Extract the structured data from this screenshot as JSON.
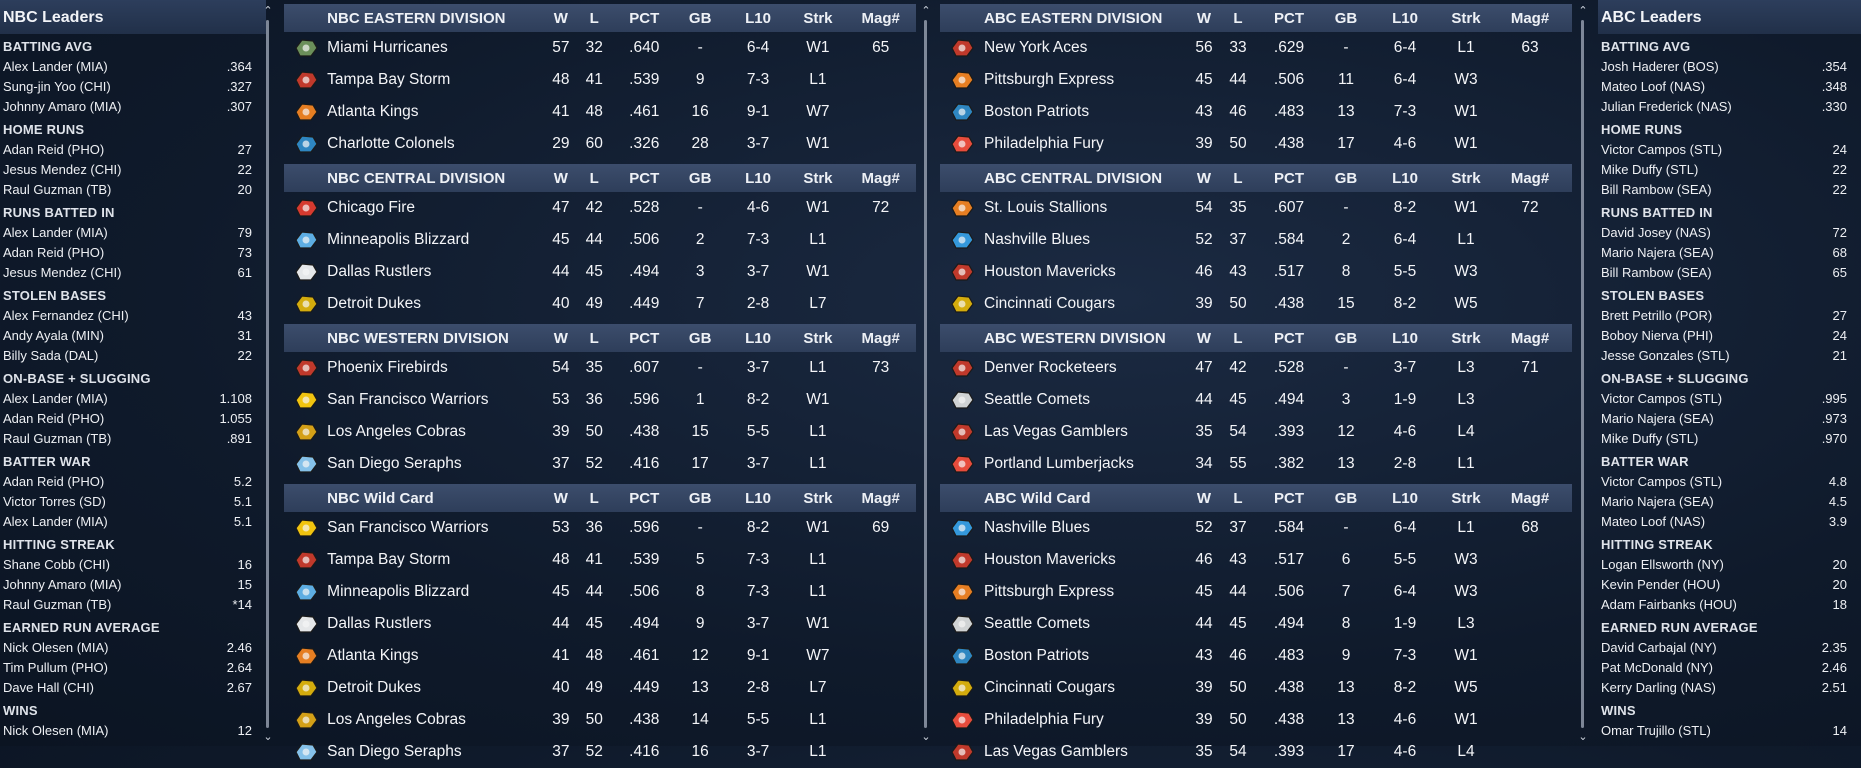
{
  "nbc_leaders": {
    "title": "NBC Leaders",
    "categories": [
      {
        "name": "BATTING AVG",
        "rows": [
          [
            "Alex Lander (MIA)",
            ".364"
          ],
          [
            "Sung-jin Yoo (CHI)",
            ".327"
          ],
          [
            "Johnny Amaro (MIA)",
            ".307"
          ]
        ]
      },
      {
        "name": "HOME RUNS",
        "rows": [
          [
            "Adan Reid (PHO)",
            "27"
          ],
          [
            "Jesus Mendez (CHI)",
            "22"
          ],
          [
            "Raul Guzman (TB)",
            "20"
          ]
        ]
      },
      {
        "name": "RUNS BATTED IN",
        "rows": [
          [
            "Alex Lander (MIA)",
            "79"
          ],
          [
            "Adan Reid (PHO)",
            "73"
          ],
          [
            "Jesus Mendez (CHI)",
            "61"
          ]
        ]
      },
      {
        "name": "STOLEN BASES",
        "rows": [
          [
            "Alex Fernandez (CHI)",
            "43"
          ],
          [
            "Andy Ayala (MIN)",
            "31"
          ],
          [
            "Billy Sada (DAL)",
            "22"
          ]
        ]
      },
      {
        "name": "ON-BASE + SLUGGING",
        "rows": [
          [
            "Alex Lander (MIA)",
            "1.108"
          ],
          [
            "Adan Reid (PHO)",
            "1.055"
          ],
          [
            "Raul Guzman (TB)",
            ".891"
          ]
        ]
      },
      {
        "name": "BATTER WAR",
        "rows": [
          [
            "Adan Reid (PHO)",
            "5.2"
          ],
          [
            "Victor Torres (SD)",
            "5.1"
          ],
          [
            "Alex Lander (MIA)",
            "5.1"
          ]
        ]
      },
      {
        "name": "HITTING STREAK",
        "rows": [
          [
            "Shane Cobb (CHI)",
            "16"
          ],
          [
            "Johnny Amaro (MIA)",
            "15"
          ],
          [
            "Raul Guzman (TB)",
            "*14"
          ]
        ]
      },
      {
        "name": "EARNED RUN AVERAGE",
        "rows": [
          [
            "Nick Olesen (MIA)",
            "2.46"
          ],
          [
            "Tim Pullum (PHO)",
            "2.64"
          ],
          [
            "Dave Hall (CHI)",
            "2.67"
          ]
        ]
      },
      {
        "name": "WINS",
        "rows": [
          [
            "Nick Olesen (MIA)",
            "12"
          ]
        ]
      }
    ]
  },
  "abc_leaders": {
    "title": "ABC Leaders",
    "categories": [
      {
        "name": "BATTING AVG",
        "rows": [
          [
            "Josh Haderer (BOS)",
            ".354"
          ],
          [
            "Mateo Loof (NAS)",
            ".348"
          ],
          [
            "Julian Frederick (NAS)",
            ".330"
          ]
        ]
      },
      {
        "name": "HOME RUNS",
        "rows": [
          [
            "Victor Campos (STL)",
            "24"
          ],
          [
            "Mike Duffy (STL)",
            "22"
          ],
          [
            "Bill Rambow (SEA)",
            "22"
          ]
        ]
      },
      {
        "name": "RUNS BATTED IN",
        "rows": [
          [
            "David Josey (NAS)",
            "72"
          ],
          [
            "Mario Najera (SEA)",
            "68"
          ],
          [
            "Bill Rambow (SEA)",
            "65"
          ]
        ]
      },
      {
        "name": "STOLEN BASES",
        "rows": [
          [
            "Brett Petrillo (POR)",
            "27"
          ],
          [
            "Boboy Nierva (PHI)",
            "24"
          ],
          [
            "Jesse Gonzales (STL)",
            "21"
          ]
        ]
      },
      {
        "name": "ON-BASE + SLUGGING",
        "rows": [
          [
            "Victor Campos (STL)",
            ".995"
          ],
          [
            "Mario Najera (SEA)",
            ".973"
          ],
          [
            "Mike Duffy (STL)",
            ".970"
          ]
        ]
      },
      {
        "name": "BATTER WAR",
        "rows": [
          [
            "Victor Campos (STL)",
            "4.8"
          ],
          [
            "Mario Najera (SEA)",
            "4.5"
          ],
          [
            "Mateo Loof (NAS)",
            "3.9"
          ]
        ]
      },
      {
        "name": "HITTING STREAK",
        "rows": [
          [
            "Logan Ellsworth (NY)",
            "20"
          ],
          [
            "Kevin Pender (HOU)",
            "20"
          ],
          [
            "Adam Fairbanks (HOU)",
            "18"
          ]
        ]
      },
      {
        "name": "EARNED RUN AVERAGE",
        "rows": [
          [
            "David Carbajal (NY)",
            "2.35"
          ],
          [
            "Pat McDonald (NY)",
            "2.46"
          ],
          [
            "Kerry Darling (NAS)",
            "2.51"
          ]
        ]
      },
      {
        "name": "WINS",
        "rows": [
          [
            "Omar Trujillo (STL)",
            "14"
          ]
        ]
      }
    ]
  },
  "columns": [
    "W",
    "L",
    "PCT",
    "GB",
    "L10",
    "Strk",
    "Mag#"
  ],
  "nbc_standings": [
    {
      "title": "NBC EASTERN DIVISION",
      "teams": [
        {
          "name": "Miami Hurricanes",
          "w": "57",
          "l": "32",
          "pct": ".640",
          "gb": "-",
          "l10": "6-4",
          "strk": "W1",
          "mag": "65",
          "logo": "hurricane-logo-icon",
          "color": "#6b8f5a"
        },
        {
          "name": "Tampa Bay Storm",
          "w": "48",
          "l": "41",
          "pct": ".539",
          "gb": "9",
          "l10": "7-3",
          "strk": "L1",
          "mag": "",
          "logo": "storm-logo-icon",
          "color": "#c0392b"
        },
        {
          "name": "Atlanta Kings",
          "w": "41",
          "l": "48",
          "pct": ".461",
          "gb": "16",
          "l10": "9-1",
          "strk": "W7",
          "mag": "",
          "logo": "kings-logo-icon",
          "color": "#e67e22"
        },
        {
          "name": "Charlotte Colonels",
          "w": "29",
          "l": "60",
          "pct": ".326",
          "gb": "28",
          "l10": "3-7",
          "strk": "W1",
          "mag": "",
          "logo": "colonels-logo-icon",
          "color": "#2e86c1"
        }
      ]
    },
    {
      "title": "NBC CENTRAL DIVISION",
      "teams": [
        {
          "name": "Chicago Fire",
          "w": "47",
          "l": "42",
          "pct": ".528",
          "gb": "-",
          "l10": "4-6",
          "strk": "W1",
          "mag": "72",
          "logo": "fire-logo-icon",
          "color": "#d63a2f"
        },
        {
          "name": "Minneapolis Blizzard",
          "w": "45",
          "l": "44",
          "pct": ".506",
          "gb": "2",
          "l10": "7-3",
          "strk": "L1",
          "mag": "",
          "logo": "blizzard-logo-icon",
          "color": "#5dade2"
        },
        {
          "name": "Dallas Rustlers",
          "w": "44",
          "l": "45",
          "pct": ".494",
          "gb": "3",
          "l10": "3-7",
          "strk": "W1",
          "mag": "",
          "logo": "rustlers-logo-icon",
          "color": "#e5e7e9"
        },
        {
          "name": "Detroit Dukes",
          "w": "40",
          "l": "49",
          "pct": ".449",
          "gb": "7",
          "l10": "2-8",
          "strk": "L7",
          "mag": "",
          "logo": "dukes-logo-icon",
          "color": "#d4ac0d"
        }
      ]
    },
    {
      "title": "NBC WESTERN DIVISION",
      "teams": [
        {
          "name": "Phoenix Firebirds",
          "w": "54",
          "l": "35",
          "pct": ".607",
          "gb": "-",
          "l10": "3-7",
          "strk": "L1",
          "mag": "73",
          "logo": "firebirds-logo-icon",
          "color": "#c0392b"
        },
        {
          "name": "San Francisco Warriors",
          "w": "53",
          "l": "36",
          "pct": ".596",
          "gb": "1",
          "l10": "8-2",
          "strk": "W1",
          "mag": "",
          "logo": "warriors-logo-icon",
          "color": "#f1c40f"
        },
        {
          "name": "Los Angeles Cobras",
          "w": "39",
          "l": "50",
          "pct": ".438",
          "gb": "15",
          "l10": "5-5",
          "strk": "L1",
          "mag": "",
          "logo": "cobras-logo-icon",
          "color": "#d4a017"
        },
        {
          "name": "San Diego Seraphs",
          "w": "37",
          "l": "52",
          "pct": ".416",
          "gb": "17",
          "l10": "3-7",
          "strk": "L1",
          "mag": "",
          "logo": "seraphs-logo-icon",
          "color": "#85c1e9"
        }
      ]
    },
    {
      "title": "NBC  Wild Card",
      "teams": [
        {
          "name": "San Francisco Warriors",
          "w": "53",
          "l": "36",
          "pct": ".596",
          "gb": "-",
          "l10": "8-2",
          "strk": "W1",
          "mag": "69",
          "logo": "warriors-logo-icon",
          "color": "#f1c40f"
        },
        {
          "name": "Tampa Bay Storm",
          "w": "48",
          "l": "41",
          "pct": ".539",
          "gb": "5",
          "l10": "7-3",
          "strk": "L1",
          "mag": "",
          "logo": "storm-logo-icon",
          "color": "#c0392b"
        },
        {
          "name": "Minneapolis Blizzard",
          "w": "45",
          "l": "44",
          "pct": ".506",
          "gb": "8",
          "l10": "7-3",
          "strk": "L1",
          "mag": "",
          "logo": "blizzard-logo-icon",
          "color": "#5dade2"
        },
        {
          "name": "Dallas Rustlers",
          "w": "44",
          "l": "45",
          "pct": ".494",
          "gb": "9",
          "l10": "3-7",
          "strk": "W1",
          "mag": "",
          "logo": "rustlers-logo-icon",
          "color": "#e5e7e9"
        },
        {
          "name": "Atlanta Kings",
          "w": "41",
          "l": "48",
          "pct": ".461",
          "gb": "12",
          "l10": "9-1",
          "strk": "W7",
          "mag": "",
          "logo": "kings-logo-icon",
          "color": "#e67e22"
        },
        {
          "name": "Detroit Dukes",
          "w": "40",
          "l": "49",
          "pct": ".449",
          "gb": "13",
          "l10": "2-8",
          "strk": "L7",
          "mag": "",
          "logo": "dukes-logo-icon",
          "color": "#d4ac0d"
        },
        {
          "name": "Los Angeles Cobras",
          "w": "39",
          "l": "50",
          "pct": ".438",
          "gb": "14",
          "l10": "5-5",
          "strk": "L1",
          "mag": "",
          "logo": "cobras-logo-icon",
          "color": "#d4a017"
        },
        {
          "name": "San Diego Seraphs",
          "w": "37",
          "l": "52",
          "pct": ".416",
          "gb": "16",
          "l10": "3-7",
          "strk": "L1",
          "mag": "",
          "logo": "seraphs-logo-icon",
          "color": "#85c1e9"
        }
      ]
    }
  ],
  "abc_standings": [
    {
      "title": "ABC EASTERN DIVISION",
      "teams": [
        {
          "name": "New York Aces",
          "w": "56",
          "l": "33",
          "pct": ".629",
          "gb": "-",
          "l10": "6-4",
          "strk": "L1",
          "mag": "63",
          "logo": "aces-logo-icon",
          "color": "#c0392b"
        },
        {
          "name": "Pittsburgh Express",
          "w": "45",
          "l": "44",
          "pct": ".506",
          "gb": "11",
          "l10": "6-4",
          "strk": "W3",
          "mag": "",
          "logo": "express-logo-icon",
          "color": "#e67e22"
        },
        {
          "name": "Boston Patriots",
          "w": "43",
          "l": "46",
          "pct": ".483",
          "gb": "13",
          "l10": "7-3",
          "strk": "W1",
          "mag": "",
          "logo": "patriots-logo-icon",
          "color": "#2e86c1"
        },
        {
          "name": "Philadelphia Fury",
          "w": "39",
          "l": "50",
          "pct": ".438",
          "gb": "17",
          "l10": "4-6",
          "strk": "W1",
          "mag": "",
          "logo": "fury-logo-icon",
          "color": "#e74c3c"
        }
      ]
    },
    {
      "title": "ABC CENTRAL DIVISION",
      "teams": [
        {
          "name": "St. Louis Stallions",
          "w": "54",
          "l": "35",
          "pct": ".607",
          "gb": "-",
          "l10": "8-2",
          "strk": "W1",
          "mag": "72",
          "logo": "stallions-logo-icon",
          "color": "#e67e22"
        },
        {
          "name": "Nashville Blues",
          "w": "52",
          "l": "37",
          "pct": ".584",
          "gb": "2",
          "l10": "6-4",
          "strk": "L1",
          "mag": "",
          "logo": "blues-logo-icon",
          "color": "#3498db"
        },
        {
          "name": "Houston Mavericks",
          "w": "46",
          "l": "43",
          "pct": ".517",
          "gb": "8",
          "l10": "5-5",
          "strk": "W3",
          "mag": "",
          "logo": "mavericks-logo-icon",
          "color": "#c0392b"
        },
        {
          "name": "Cincinnati Cougars",
          "w": "39",
          "l": "50",
          "pct": ".438",
          "gb": "15",
          "l10": "8-2",
          "strk": "W5",
          "mag": "",
          "logo": "cougars-logo-icon",
          "color": "#d4ac0d"
        }
      ]
    },
    {
      "title": "ABC WESTERN DIVISION",
      "teams": [
        {
          "name": "Denver Rocketeers",
          "w": "47",
          "l": "42",
          "pct": ".528",
          "gb": "-",
          "l10": "3-7",
          "strk": "L3",
          "mag": "71",
          "logo": "rocketeers-logo-icon",
          "color": "#c0392b"
        },
        {
          "name": "Seattle Comets",
          "w": "44",
          "l": "45",
          "pct": ".494",
          "gb": "3",
          "l10": "1-9",
          "strk": "L3",
          "mag": "",
          "logo": "comets-logo-icon",
          "color": "#d0d3d4"
        },
        {
          "name": "Las Vegas Gamblers",
          "w": "35",
          "l": "54",
          "pct": ".393",
          "gb": "12",
          "l10": "4-6",
          "strk": "L4",
          "mag": "",
          "logo": "gamblers-logo-icon",
          "color": "#c0392b"
        },
        {
          "name": "Portland Lumberjacks",
          "w": "34",
          "l": "55",
          "pct": ".382",
          "gb": "13",
          "l10": "2-8",
          "strk": "L1",
          "mag": "",
          "logo": "lumberjacks-logo-icon",
          "color": "#e74c3c"
        }
      ]
    },
    {
      "title": "ABC  Wild Card",
      "teams": [
        {
          "name": "Nashville Blues",
          "w": "52",
          "l": "37",
          "pct": ".584",
          "gb": "-",
          "l10": "6-4",
          "strk": "L1",
          "mag": "68",
          "logo": "blues-logo-icon",
          "color": "#3498db"
        },
        {
          "name": "Houston Mavericks",
          "w": "46",
          "l": "43",
          "pct": ".517",
          "gb": "6",
          "l10": "5-5",
          "strk": "W3",
          "mag": "",
          "logo": "mavericks-logo-icon",
          "color": "#c0392b"
        },
        {
          "name": "Pittsburgh Express",
          "w": "45",
          "l": "44",
          "pct": ".506",
          "gb": "7",
          "l10": "6-4",
          "strk": "W3",
          "mag": "",
          "logo": "express-logo-icon",
          "color": "#e67e22"
        },
        {
          "name": "Seattle Comets",
          "w": "44",
          "l": "45",
          "pct": ".494",
          "gb": "8",
          "l10": "1-9",
          "strk": "L3",
          "mag": "",
          "logo": "comets-logo-icon",
          "color": "#d0d3d4"
        },
        {
          "name": "Boston Patriots",
          "w": "43",
          "l": "46",
          "pct": ".483",
          "gb": "9",
          "l10": "7-3",
          "strk": "W1",
          "mag": "",
          "logo": "patriots-logo-icon",
          "color": "#2e86c1"
        },
        {
          "name": "Cincinnati Cougars",
          "w": "39",
          "l": "50",
          "pct": ".438",
          "gb": "13",
          "l10": "8-2",
          "strk": "W5",
          "mag": "",
          "logo": "cougars-logo-icon",
          "color": "#d4ac0d"
        },
        {
          "name": "Philadelphia Fury",
          "w": "39",
          "l": "50",
          "pct": ".438",
          "gb": "13",
          "l10": "4-6",
          "strk": "W1",
          "mag": "",
          "logo": "fury-logo-icon",
          "color": "#e74c3c"
        },
        {
          "name": "Las Vegas Gamblers",
          "w": "35",
          "l": "54",
          "pct": ".393",
          "gb": "17",
          "l10": "4-6",
          "strk": "L4",
          "mag": "",
          "logo": "gamblers-logo-icon",
          "color": "#c0392b"
        }
      ]
    }
  ]
}
